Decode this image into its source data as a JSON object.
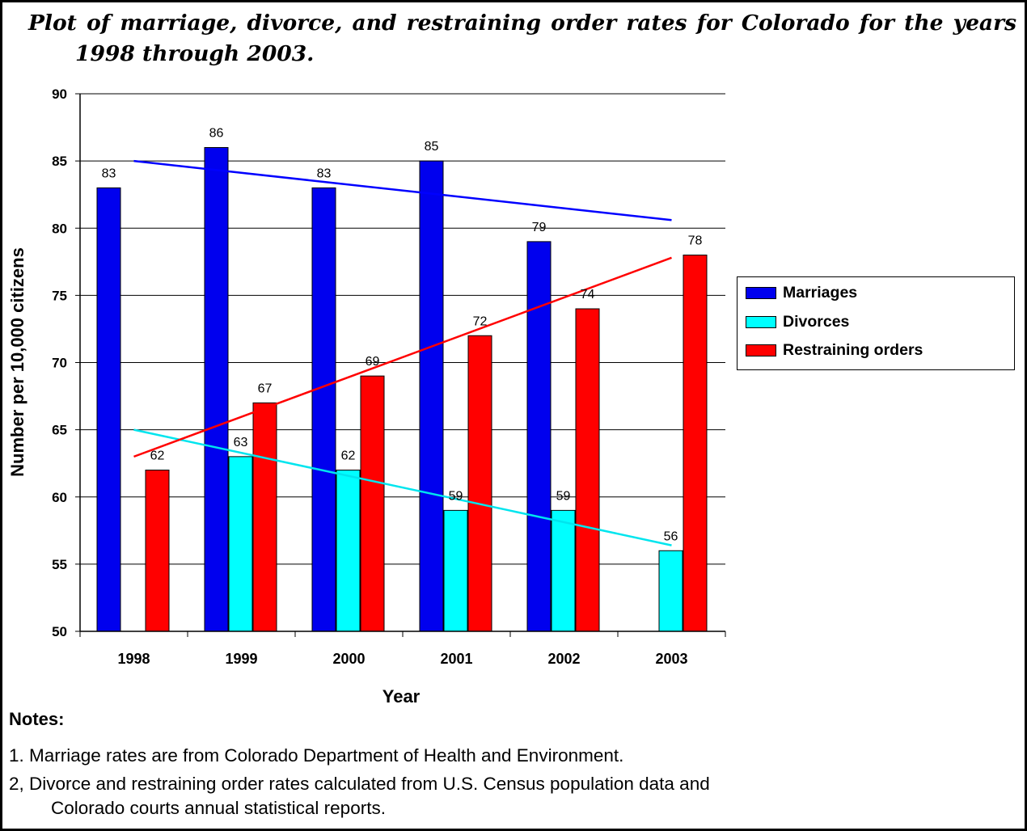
{
  "title_line1": "Plot of marriage, divorce, and restraining order rates for Colorado for the years",
  "title_line2": "1998 through 2003.",
  "chart_data": {
    "type": "bar",
    "categories": [
      "1998",
      "1999",
      "2000",
      "2001",
      "2002",
      "2003"
    ],
    "series": [
      {
        "name": "Marriages",
        "color": "#0000ee",
        "values": [
          83,
          86,
          83,
          85,
          79,
          null
        ],
        "trend": [
          85.0,
          80.6
        ]
      },
      {
        "name": "Divorces",
        "color": "#00ffff",
        "values": [
          null,
          63,
          62,
          59,
          59,
          56
        ],
        "trend": [
          65.0,
          56.4
        ]
      },
      {
        "name": "Restraining orders",
        "color": "#ff0000",
        "values": [
          62,
          67,
          69,
          72,
          74,
          78
        ],
        "trend": [
          63.0,
          77.8
        ]
      }
    ],
    "trendline_colors": [
      "#0000ff",
      "#00e5ee",
      "#ff0000"
    ],
    "xlabel": "Year",
    "ylabel": "Number per 10,000 citizens",
    "ylim": [
      50,
      90
    ],
    "yticks": [
      50,
      55,
      60,
      65,
      70,
      75,
      80,
      85,
      90
    ],
    "grid": true,
    "legend": "right"
  },
  "notes": {
    "heading": "Notes:",
    "line1": "1. Marriage rates are from Colorado Department of Health and Environment.",
    "line2": "2, Divorce and restraining order rates calculated from U.S. Census population data and",
    "line3": "Colorado courts annual statistical reports."
  }
}
